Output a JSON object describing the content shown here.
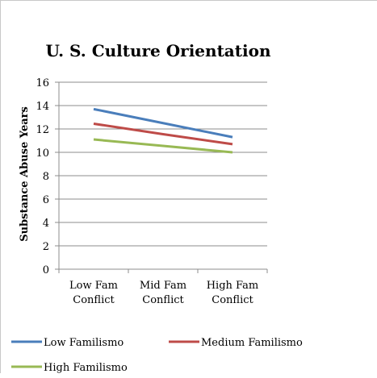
{
  "chart_data": {
    "type": "line",
    "title": "U. S. Culture Orientation",
    "xlabel": "",
    "ylabel": "Substance Abuse Years",
    "categories": [
      [
        "Low Fam",
        "Conflict"
      ],
      [
        "Mid Fam",
        "Conflict"
      ],
      [
        "High Fam",
        "Conflict"
      ]
    ],
    "ylim": [
      0,
      16
    ],
    "yticks": [
      0,
      2,
      4,
      6,
      8,
      10,
      12,
      14,
      16
    ],
    "grid": true,
    "legend": "bottom",
    "series": [
      {
        "name": "Low Familismo",
        "color": "#4a7ebb",
        "values": [
          13.7,
          12.5,
          11.3
        ]
      },
      {
        "name": "Medium Familismo",
        "color": "#be4b48",
        "values": [
          12.45,
          11.55,
          10.7
        ]
      },
      {
        "name": "High Familismo",
        "color": "#98b954",
        "values": [
          11.1,
          10.55,
          10.0
        ]
      }
    ]
  }
}
